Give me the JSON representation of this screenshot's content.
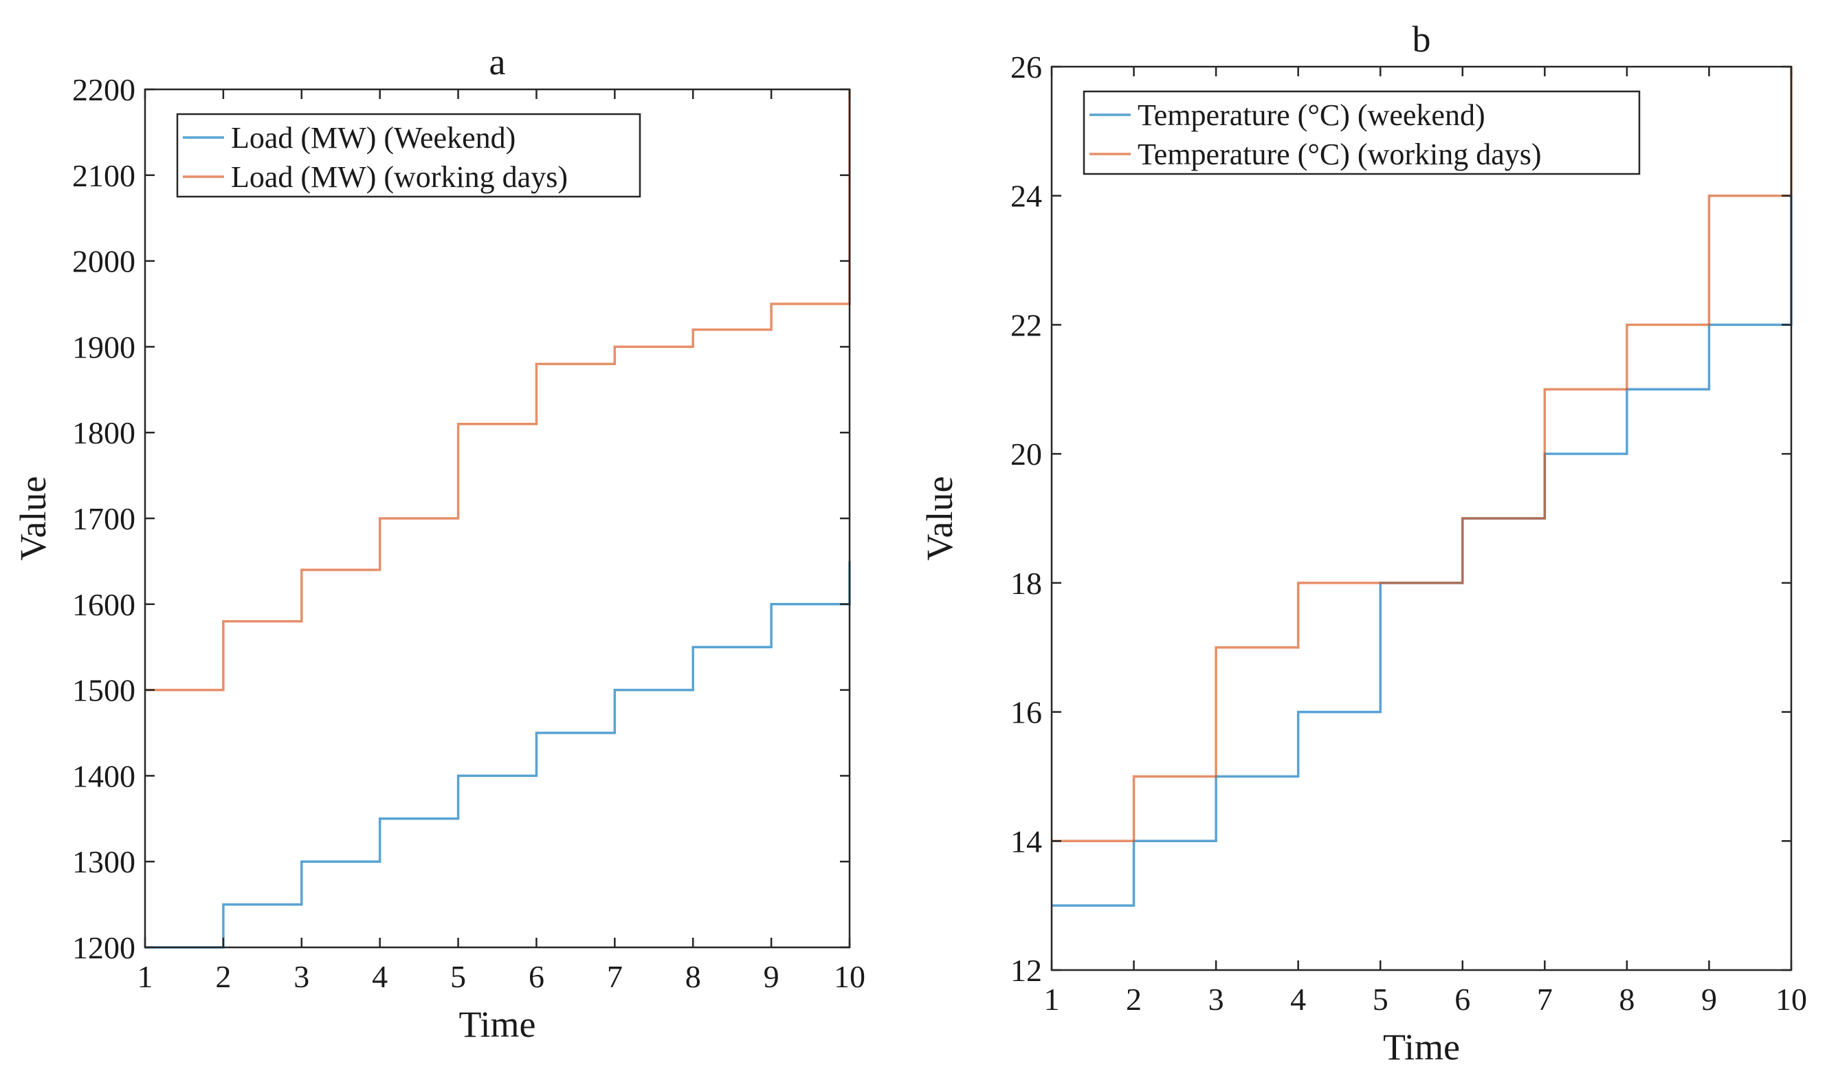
{
  "chart_data": [
    {
      "type": "line",
      "step": true,
      "title": "a",
      "xlabel": "Time",
      "ylabel": "Value",
      "xlim": [
        1,
        10
      ],
      "ylim": [
        1200,
        2200
      ],
      "xticks": [
        1,
        2,
        3,
        4,
        5,
        6,
        7,
        8,
        9,
        10
      ],
      "yticks": [
        1200,
        1300,
        1400,
        1500,
        1600,
        1700,
        1800,
        1900,
        2000,
        2100,
        2200
      ],
      "legend_position": "top-left",
      "x": [
        1,
        2,
        3,
        4,
        5,
        6,
        7,
        8,
        9,
        10
      ],
      "series": [
        {
          "name": "Load (MW) (Weekend)",
          "color": "#0072BD",
          "values": [
            1200,
            1250,
            1300,
            1350,
            1400,
            1450,
            1500,
            1550,
            1600,
            1650
          ]
        },
        {
          "name": "Load (MW) (working days)",
          "color": "#D95319",
          "values": [
            1500,
            1580,
            1640,
            1700,
            1810,
            1880,
            1900,
            1920,
            1950,
            2200
          ]
        }
      ]
    },
    {
      "type": "line",
      "step": true,
      "title": "b",
      "xlabel": "Time",
      "ylabel": "Value",
      "xlim": [
        1,
        10
      ],
      "ylim": [
        12,
        26
      ],
      "xticks": [
        1,
        2,
        3,
        4,
        5,
        6,
        7,
        8,
        9,
        10
      ],
      "yticks": [
        12,
        14,
        16,
        18,
        20,
        22,
        24,
        26
      ],
      "legend_position": "top-left",
      "x": [
        1,
        2,
        3,
        4,
        5,
        6,
        7,
        8,
        9,
        10
      ],
      "series": [
        {
          "name": "Temperature (°C) (weekend)",
          "color": "#0072BD",
          "values": [
            13,
            14,
            15,
            16,
            18,
            19,
            20,
            21,
            22,
            24
          ]
        },
        {
          "name": "Temperature (°C) (working days)",
          "color": "#D95319",
          "values": [
            14,
            15,
            17,
            18,
            18,
            19,
            21,
            22,
            24,
            26
          ]
        }
      ]
    }
  ]
}
